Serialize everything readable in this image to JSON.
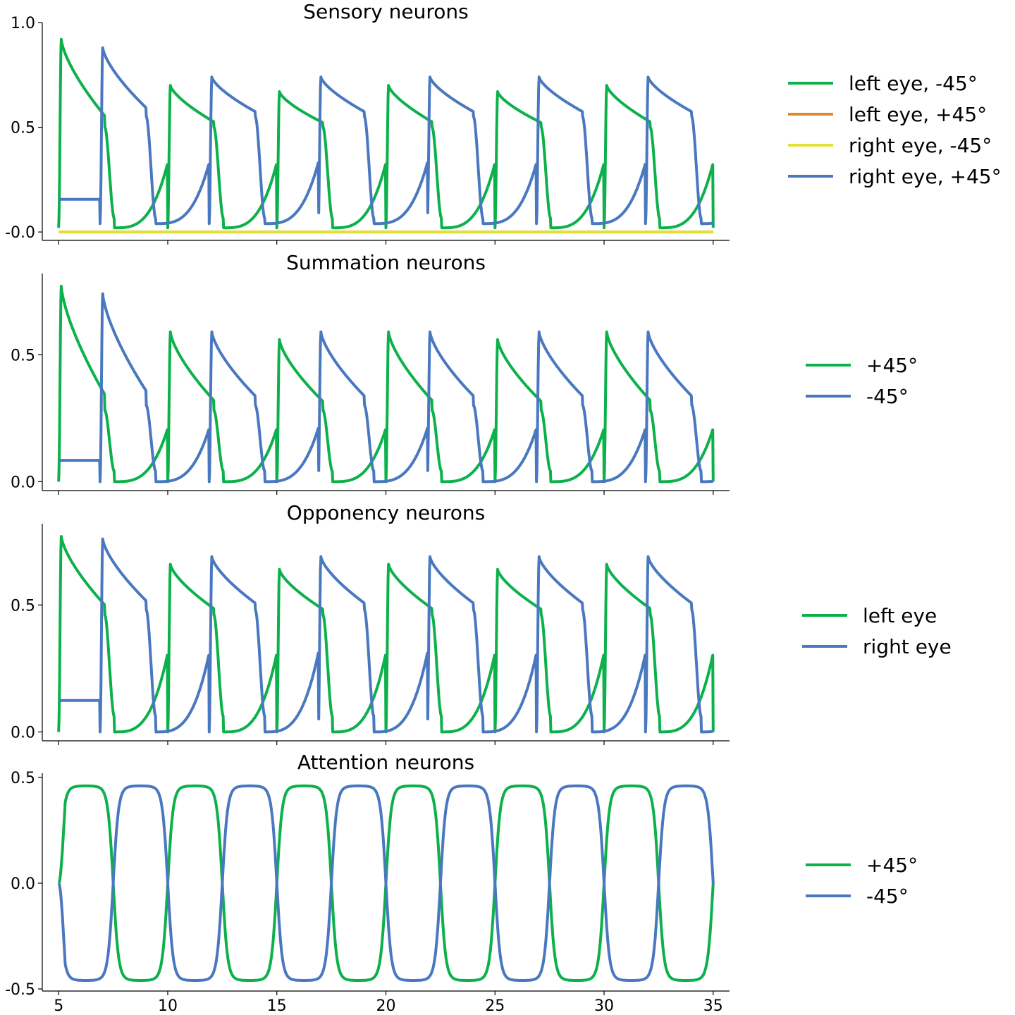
{
  "colors": {
    "green": "#0db14b",
    "orange": "#e08a2e",
    "yellow": "#e3e03a",
    "blue": "#4a78c0"
  },
  "chart_data": [
    {
      "type": "line",
      "title": "Sensory neurons",
      "xlim": [
        4.25,
        35.75
      ],
      "ylim": [
        -0.04,
        1.0
      ],
      "yticks": [
        {
          "value": 1.0,
          "label": "1.0"
        },
        {
          "value": 0.5,
          "label": "0.5"
        },
        {
          "value": 0.0,
          "label": "-0.0"
        }
      ],
      "xticks": [
        5,
        10,
        15,
        20,
        25,
        30,
        35
      ],
      "show_xtick_labels": false,
      "legend_position": "right",
      "series": [
        {
          "name": "left eye, -45°",
          "color": "#0db14b",
          "shape": {
            "kind": "sensory",
            "peak_first": 0.92,
            "peak_odd": 0.7,
            "peak_rest": 0.67,
            "shoulder": 0.5,
            "low": 0.02,
            "cross": 0.33,
            "phase": 0
          }
        },
        {
          "name": "left eye, +45°",
          "color": "#e08a2e",
          "shape": {
            "kind": "flat",
            "value": 0.0
          }
        },
        {
          "name": "right eye, -45°",
          "color": "#e3e03a",
          "shape": {
            "kind": "flat",
            "value": 0.0
          }
        },
        {
          "name": "right eye, +45°",
          "color": "#4a78c0",
          "shape": {
            "kind": "sensory",
            "peak_first": 0.88,
            "peak_odd": 0.74,
            "peak_rest": 0.74,
            "shoulder": 0.55,
            "low": 0.04,
            "cross": 0.33,
            "phase": 1
          }
        }
      ]
    },
    {
      "type": "line",
      "title": "Summation neurons",
      "xlim": [
        4.25,
        35.75
      ],
      "ylim": [
        -0.035,
        0.82
      ],
      "yticks": [
        {
          "value": 0.5,
          "label": "0.5"
        },
        {
          "value": 0.0,
          "label": "0.0"
        }
      ],
      "xticks": [
        5,
        10,
        15,
        20,
        25,
        30,
        35
      ],
      "show_xtick_labels": false,
      "legend_position": "right",
      "series": [
        {
          "name": "+45°",
          "color": "#0db14b",
          "shape": {
            "kind": "sensory",
            "peak_first": 0.77,
            "peak_odd": 0.59,
            "peak_rest": 0.56,
            "shoulder": 0.28,
            "low": 0.0,
            "cross": 0.21,
            "phase": 0
          }
        },
        {
          "name": "-45°",
          "color": "#4a78c0",
          "shape": {
            "kind": "sensory",
            "peak_first": 0.74,
            "peak_odd": 0.59,
            "peak_rest": 0.59,
            "shoulder": 0.3,
            "low": 0.0,
            "cross": 0.21,
            "phase": 1
          }
        }
      ]
    },
    {
      "type": "line",
      "title": "Opponency neurons",
      "xlim": [
        4.25,
        35.75
      ],
      "ylim": [
        -0.035,
        0.82
      ],
      "yticks": [
        {
          "value": 0.5,
          "label": "0.5"
        },
        {
          "value": 0.0,
          "label": "0.0"
        }
      ],
      "xticks": [
        5,
        10,
        15,
        20,
        25,
        30,
        35
      ],
      "show_xtick_labels": false,
      "legend_position": "right",
      "series": [
        {
          "name": "left eye",
          "color": "#0db14b",
          "shape": {
            "kind": "sensory",
            "peak_first": 0.77,
            "peak_odd": 0.66,
            "peak_rest": 0.64,
            "shoulder": 0.46,
            "low": 0.0,
            "cross": 0.31,
            "phase": 0
          }
        },
        {
          "name": "right eye",
          "color": "#4a78c0",
          "shape": {
            "kind": "sensory",
            "peak_first": 0.76,
            "peak_odd": 0.69,
            "peak_rest": 0.69,
            "shoulder": 0.48,
            "low": 0.0,
            "cross": 0.31,
            "phase": 1
          }
        }
      ]
    },
    {
      "type": "line",
      "title": "Attention neurons",
      "xlim": [
        4.25,
        35.75
      ],
      "ylim": [
        -0.51,
        0.52
      ],
      "yticks": [
        {
          "value": 0.5,
          "label": "0.5"
        },
        {
          "value": 0.0,
          "label": "0.0"
        },
        {
          "value": -0.5,
          "label": "-0.5"
        }
      ],
      "xticks": [
        5,
        10,
        15,
        20,
        25,
        30,
        35
      ],
      "show_xtick_labels": true,
      "legend_position": "right",
      "series": [
        {
          "name": "+45°",
          "color": "#0db14b",
          "shape": {
            "kind": "square",
            "amp": 0.46,
            "sign": 1
          }
        },
        {
          "name": "-45°",
          "color": "#4a78c0",
          "shape": {
            "kind": "square",
            "amp": 0.46,
            "sign": -1
          }
        }
      ]
    }
  ]
}
